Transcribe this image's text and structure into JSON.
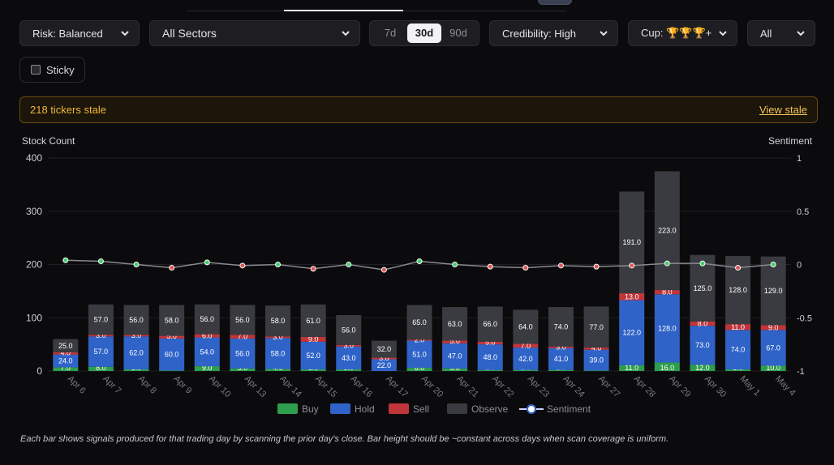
{
  "filters": {
    "risk": "Risk: Balanced",
    "sector": "All Sectors",
    "periods": [
      "7d",
      "30d",
      "90d"
    ],
    "active_period": "30d",
    "credibility": "Credibility: High",
    "cup": "Cup: 🏆🏆🏆+",
    "all": "All",
    "sticky_label": "Sticky",
    "sticky_checked": false
  },
  "stale_banner": {
    "text": "218 tickers stale",
    "link": "View stale"
  },
  "colors": {
    "buy": "#2e9d4d",
    "hold": "#2f63c8",
    "sell": "#c0353a",
    "observe": "#3a3b40",
    "sentiment_line": "#8a8a90",
    "stale_text": "#f0b73a"
  },
  "chart_data": {
    "type": "bar",
    "stacked": true,
    "ylabel_left": "Stock Count",
    "ylabel_right": "Sentiment",
    "ylim": [
      0,
      400
    ],
    "yticks": [
      0,
      100,
      200,
      300,
      400
    ],
    "y2lim": [
      -1,
      1
    ],
    "y2ticks": [
      "1",
      "0.5",
      "0",
      "-0.5",
      "-1"
    ],
    "grid": true,
    "legend_position": "bottom",
    "categories": [
      "Apr 6",
      "Apr 7",
      "Apr 8",
      "Apr 9",
      "Apr 10",
      "Apr 13",
      "Apr 14",
      "Apr 15",
      "Apr 16",
      "Apr 17",
      "Apr 20",
      "Apr 21",
      "Apr 22",
      "Apr 23",
      "Apr 24",
      "Apr 27",
      "Apr 28",
      "Apr 29",
      "Apr 30",
      "May 1",
      "May 4"
    ],
    "series": [
      {
        "name": "Buy",
        "values": [
          7,
          8,
          3,
          1,
          9,
          5,
          4,
          3,
          3,
          0,
          6,
          5,
          2,
          2,
          2,
          1,
          11,
          16,
          12,
          3,
          10
        ]
      },
      {
        "name": "Hold",
        "values": [
          24,
          57,
          62,
          60,
          54,
          56,
          58,
          52,
          43,
          22,
          51,
          47,
          48,
          42,
          41,
          39,
          122,
          128,
          73,
          74,
          67
        ]
      },
      {
        "name": "Sell",
        "values": [
          4,
          3,
          3,
          5,
          6,
          7,
          3,
          9,
          3,
          3,
          2,
          5,
          5,
          7,
          3,
          4,
          13,
          8,
          8,
          11,
          9
        ]
      },
      {
        "name": "Observe",
        "values": [
          25,
          57,
          56,
          58,
          56,
          56,
          58,
          61,
          56,
          32,
          65,
          63,
          66,
          64,
          74,
          77,
          191,
          223,
          125,
          128,
          129
        ]
      }
    ],
    "labels": [
      [
        "7.0",
        "24.0",
        "4.0",
        "25.0"
      ],
      [
        "8.0",
        "57.0",
        "3.0",
        "57.0"
      ],
      [
        "3.0",
        "62.0",
        "3.0",
        "56.0"
      ],
      [
        "1.0",
        "60.0",
        "5.0",
        "58.0"
      ],
      [
        "9.0",
        "54.0",
        "6.0",
        "56.0"
      ],
      [
        "5.0",
        "56.0",
        "7.0",
        "56.0"
      ],
      [
        "4.0",
        "58.0",
        "3.0",
        "58.0"
      ],
      [
        "3.0",
        "52.0",
        "9.0",
        "61.0"
      ],
      [
        "3.0",
        "43.0",
        "3.0",
        "56.0"
      ],
      [
        "",
        "22.0",
        "3.0",
        "32.0"
      ],
      [
        "6.0",
        "51.0",
        "2.0",
        "65.0"
      ],
      [
        "5.0",
        "47.0",
        "5.0",
        "63.0"
      ],
      [
        "2.0",
        "48.0",
        "5.0",
        "66.0"
      ],
      [
        "2.0",
        "42.0",
        "7.0",
        "64.0"
      ],
      [
        "2.0",
        "41.0",
        "3.0",
        "74.0"
      ],
      [
        "1.0",
        "39.0",
        "4.0",
        "77.0"
      ],
      [
        "11.0",
        "122.0",
        "13.0",
        "191.0"
      ],
      [
        "16.0",
        "128.0",
        "8.0",
        "223.0"
      ],
      [
        "12.0",
        "73.0",
        "8.0",
        "125.0"
      ],
      [
        "3.0",
        "74.0",
        "11.0",
        "128.0"
      ],
      [
        "10.0",
        "67.0",
        "9.0",
        "129.0"
      ]
    ],
    "sentiment": {
      "name": "Sentiment",
      "values": [
        0.04,
        0.03,
        0.0,
        -0.03,
        0.02,
        -0.01,
        0.0,
        -0.04,
        0.0,
        -0.05,
        0.03,
        0.0,
        -0.02,
        -0.03,
        -0.01,
        -0.02,
        -0.01,
        0.01,
        0.01,
        -0.03,
        0.0
      ]
    }
  },
  "footnote": "Each bar shows signals produced for that trading day by scanning the prior day's close. Bar height should be ~constant across days when scan coverage is uniform."
}
